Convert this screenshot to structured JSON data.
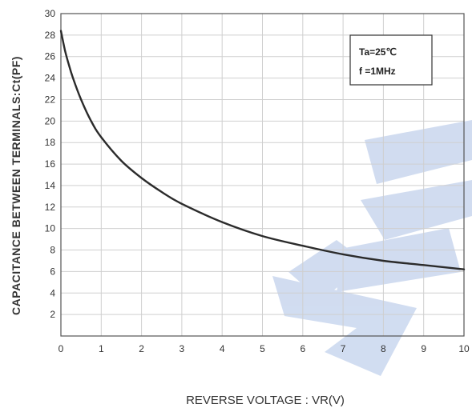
{
  "chart_data": {
    "type": "line",
    "xlabel": "REVERSE VOLTAGE : VR(V)",
    "ylabel": "CAPACITANCE  BETWEEN  TERMINALS:Ct(PF)",
    "xlim": [
      0,
      10
    ],
    "ylim": [
      0,
      30
    ],
    "x_ticks": [
      "0",
      "1",
      "2",
      "3",
      "4",
      "5",
      "6",
      "7",
      "8",
      "9",
      "10"
    ],
    "y_ticks": [
      "2",
      "4",
      "6",
      "8",
      "10",
      "12",
      "14",
      "16",
      "18",
      "20",
      "22",
      "24",
      "26",
      "28",
      "30"
    ],
    "grid": true,
    "annotation": [
      "Ta=25℃",
      "f =1MHz"
    ],
    "annotation_position": "top-right",
    "series": [
      {
        "color": "#2b2b2b",
        "x": [
          0,
          0.1,
          0.2,
          0.3,
          0.5,
          0.75,
          1,
          1.5,
          2,
          2.5,
          3,
          4,
          5,
          6,
          7,
          8,
          9,
          10
        ],
        "y": [
          28.4,
          26.6,
          25.2,
          24.0,
          22.0,
          20.0,
          18.5,
          16.3,
          14.7,
          13.4,
          12.3,
          10.6,
          9.3,
          8.4,
          7.6,
          7.0,
          6.6,
          6.2
        ]
      }
    ],
    "watermark_color": "#c9d7ee"
  }
}
